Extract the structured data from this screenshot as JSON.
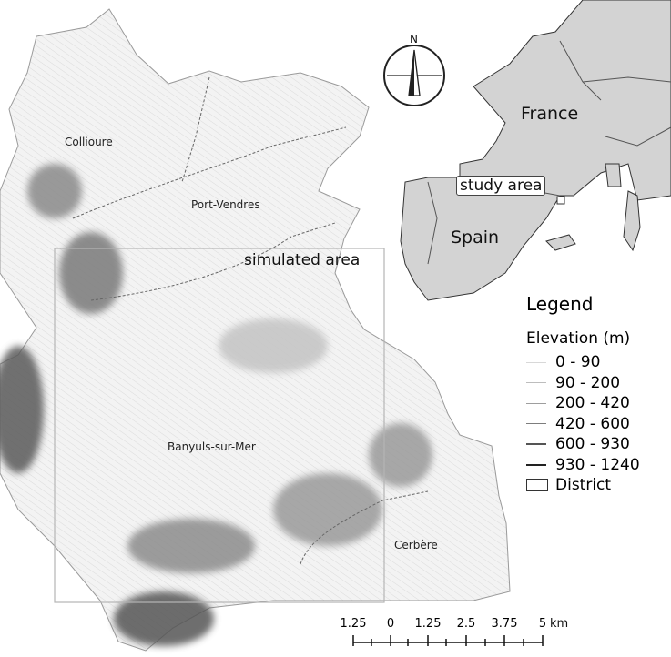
{
  "compass": {
    "north_label": "N",
    "icon": "compass-rose-icon"
  },
  "labels": {
    "collioure": "Collioure",
    "port_vendres": "Port-Vendres",
    "banyuls": "Banyuls-sur-Mer",
    "cerbere": "Cerbère",
    "simulated_area": "simulated area"
  },
  "inset": {
    "france": "France",
    "spain": "Spain",
    "study_area": "study area",
    "country_fill": "#d3d3d3"
  },
  "legend": {
    "title": "Legend",
    "elevation_title": "Elevation (m)",
    "classes": [
      {
        "label": "0 - 90",
        "color": "#d8d8d8"
      },
      {
        "label": "90 - 200",
        "color": "#bdbdbd"
      },
      {
        "label": "200 - 420",
        "color": "#9e9e9e"
      },
      {
        "label": "420 - 600",
        "color": "#7d7d7d"
      },
      {
        "label": "600 - 930",
        "color": "#555555"
      },
      {
        "label": "930 - 1240",
        "color": "#222222"
      }
    ],
    "district_label": "District"
  },
  "scalebar": {
    "ticks": [
      "1.25",
      "0",
      "1.25",
      "2.5",
      "3.75",
      "5"
    ],
    "unit": "km"
  }
}
